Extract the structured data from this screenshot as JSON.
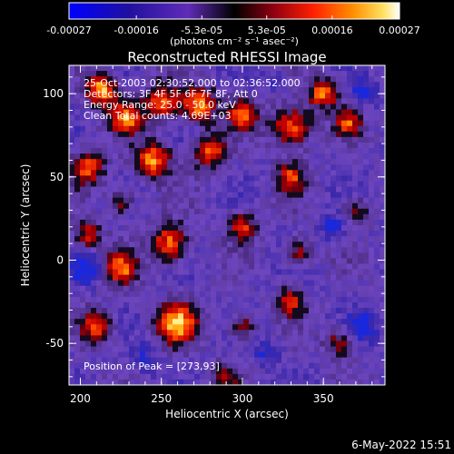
{
  "colorbar": {
    "ticks": [
      "-0.00027",
      "-0.00016",
      "-5.3e-05",
      "5.3e-05",
      "0.00016",
      "0.00027"
    ],
    "tick_values": [
      -0.00027,
      -0.00016,
      -5.3e-05,
      5.3e-05,
      0.00016,
      0.00027
    ],
    "range": [
      -0.00027,
      0.00027
    ],
    "units_label": "(photons cm⁻² s⁻¹ asec⁻²)"
  },
  "chart_data": {
    "type": "heatmap",
    "title": "Reconstructed RHESSI Image",
    "xlabel": "Heliocentric X (arcsec)",
    "ylabel": "Heliocentric Y (arcsec)",
    "xlim": [
      193,
      388
    ],
    "ylim": [
      -75,
      117
    ],
    "xticks": [
      200,
      250,
      300,
      350
    ],
    "xtick_labels": [
      "200",
      "250",
      "300",
      "350"
    ],
    "yticks": [
      -50,
      0,
      50,
      100
    ],
    "ytick_labels": [
      "-50",
      "0",
      "50",
      "100"
    ],
    "colormap": [
      "#0000ff",
      "#1a0a8c",
      "#4a2aa8",
      "#7a44c8",
      "#000000",
      "#5a0010",
      "#c00000",
      "#ff5000",
      "#ffb000",
      "#ffffff"
    ],
    "annotations": [
      "25-Oct-2003 02:30:52.000 to 02:36:52.000",
      "Detectors: 3F 4F 5F 6F 7F 8F, Att 0",
      "Energy Range: 25.0 - 50.0 keV",
      "Clean     Total counts: 4.69E+03"
    ],
    "peak_label": "Position of Peak = [273,93]",
    "peak": [
      273,
      93
    ]
  },
  "footer": {
    "timestamp": "6-May-2022 15:51"
  }
}
